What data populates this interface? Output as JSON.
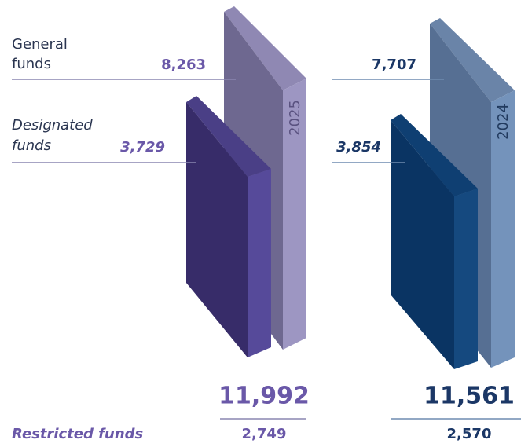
{
  "general_label": [
    "General",
    "funds"
  ],
  "designated_label": [
    "Designated",
    "funds"
  ],
  "restricted_label": "Restricted funds",
  "years": [
    {
      "year": "2025",
      "general": "8,263",
      "designated": "3,729",
      "total": "11,992",
      "restricted": "2,749"
    },
    {
      "year": "2024",
      "general": "7,707",
      "designated": "3,854",
      "total": "11,561",
      "restricted": "2,570"
    }
  ]
}
